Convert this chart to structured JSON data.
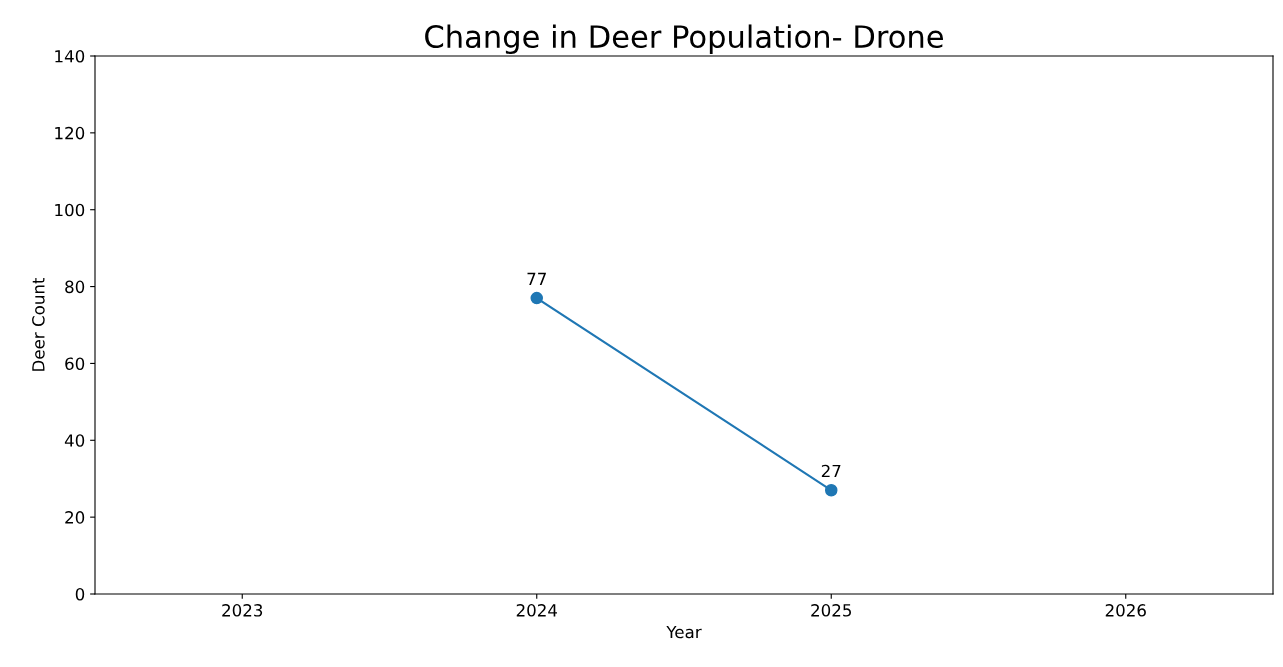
{
  "chart_data": {
    "type": "line",
    "title": "Change in Deer Population- Drone",
    "xlabel": "Year",
    "ylabel": "Deer Count",
    "x": [
      2024,
      2025
    ],
    "series": [
      {
        "color": "#1f77b4",
        "values": [
          77,
          27
        ]
      }
    ],
    "xlim": [
      2022.5,
      2026.5
    ],
    "xticks": [
      2023,
      2024,
      2025,
      2026
    ],
    "ylim": [
      0,
      140
    ],
    "yticks": [
      0,
      20,
      40,
      60,
      80,
      100,
      120,
      140
    ],
    "marker": "circle",
    "line_style": "solid",
    "data_labels": true,
    "grid": false,
    "legend": false
  }
}
